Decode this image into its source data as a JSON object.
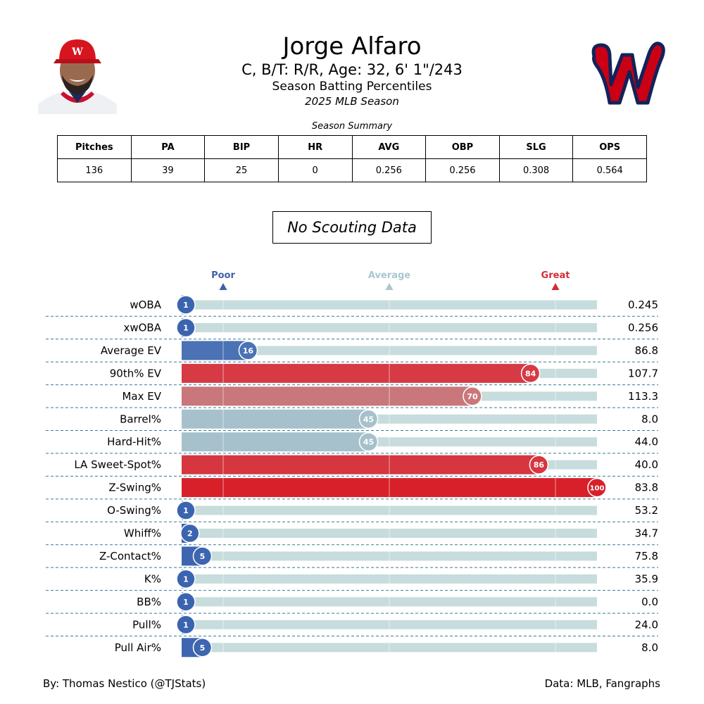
{
  "player": {
    "name": "Jorge Alfaro",
    "bio": "C, B/T: R/R, Age: 32, 6' 1\"/243",
    "heading": "Season Batting Percentiles",
    "season": "2025 MLB Season"
  },
  "summary": {
    "caption": "Season Summary",
    "headers": [
      "Pitches",
      "PA",
      "BIP",
      "HR",
      "AVG",
      "OBP",
      "SLG",
      "OPS"
    ],
    "values": [
      "136",
      "39",
      "25",
      "0",
      "0.256",
      "0.256",
      "0.308",
      "0.564"
    ]
  },
  "scouting_note": "No Scouting Data",
  "chart_data": {
    "type": "bar",
    "orientation": "horizontal",
    "xlim": [
      0,
      100
    ],
    "reference_markers": [
      {
        "label": "Poor",
        "value": 10,
        "color": "#3f62a8"
      },
      {
        "label": "Average",
        "value": 50,
        "color": "#a9c7d0"
      },
      {
        "label": "Great",
        "value": 90,
        "color": "#d22d37"
      }
    ],
    "categories": [
      "wOBA",
      "xwOBA",
      "Average EV",
      "90th% EV",
      "Max EV",
      "Barrel%",
      "Hard-Hit%",
      "LA Sweet-Spot%",
      "Z-Swing%",
      "O-Swing%",
      "Whiff%",
      "Z-Contact%",
      "K%",
      "BB%",
      "Pull%",
      "Pull Air%"
    ],
    "percentiles": [
      1,
      1,
      16,
      84,
      70,
      45,
      45,
      86,
      100,
      1,
      2,
      5,
      1,
      1,
      1,
      5
    ],
    "stat_values": [
      "0.245",
      "0.256",
      "86.8",
      "107.7",
      "113.3",
      "8.0",
      "44.0",
      "40.0",
      "83.8",
      "53.2",
      "34.7",
      "75.8",
      "35.9",
      "0.0",
      "24.0",
      "8.0"
    ],
    "colors": [
      "#3b64b0",
      "#3b64b0",
      "#4a72b5",
      "#d63a45",
      "#c9777b",
      "#a6c1cc",
      "#a6c1cc",
      "#d6363f",
      "#d72029",
      "#3b64b0",
      "#3b64b0",
      "#3e66b0",
      "#3b64b0",
      "#3b64b0",
      "#3b64b0",
      "#3e66b0"
    ],
    "track_color": "#c7dcdc",
    "grid": false
  },
  "credits": {
    "left": "By: Thomas Nestico (@TJStats)",
    "right": "Data: MLB, Fangraphs"
  }
}
